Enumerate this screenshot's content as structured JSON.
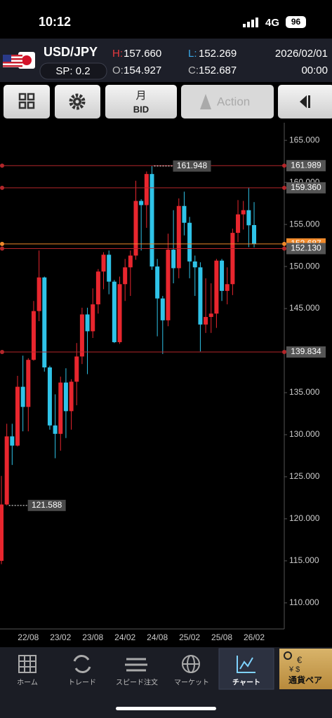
{
  "status_bar": {
    "time": "10:12",
    "network": "4G",
    "battery": "96"
  },
  "header": {
    "symbol": "USD/JPY",
    "spread": "SP: 0.2",
    "high_label": "H:",
    "high": "157.660",
    "low_label": "L:",
    "low": "152.269",
    "open_label": "O:",
    "open": "154.927",
    "close_label": "C:",
    "close": "152.687",
    "date": "2026/02/01",
    "time": "00:00"
  },
  "toolbar": {
    "period": "月",
    "side": "BID",
    "action": "Action"
  },
  "chart_data": {
    "type": "candlestick",
    "categories": [
      null,
      null,
      null,
      null,
      null,
      "22/08",
      null,
      null,
      null,
      null,
      null,
      "23/02",
      null,
      null,
      null,
      null,
      null,
      "23/08",
      null,
      null,
      null,
      null,
      null,
      "24/02",
      null,
      null,
      null,
      null,
      null,
      "24/08",
      null,
      null,
      null,
      null,
      null,
      "25/02",
      null,
      null,
      null,
      null,
      null,
      "25/08",
      null,
      null,
      null,
      null,
      null,
      "26/02"
    ],
    "open": [
      115.0,
      121.7,
      129.8,
      128.7,
      135.7,
      133.3,
      138.9,
      144.7,
      148.7,
      138.0,
      131.1,
      130.1,
      136.2,
      132.8,
      136.3,
      139.3,
      144.3,
      142.3,
      145.5,
      149.4,
      151.4,
      148.2,
      141.0,
      147.9,
      149.9,
      151.3,
      157.8,
      157.3,
      161.0,
      150.0,
      146.2,
      143.6,
      152.0,
      149.8,
      157.2,
      155.2,
      150.6,
      149.9,
      143.1,
      144.0,
      144.4,
      150.7,
      147.1,
      147.9,
      154.0,
      156.2,
      156.7,
      154.927
    ],
    "high": [
      125.1,
      131.3,
      131.3,
      137.0,
      139.4,
      139.1,
      145.9,
      151.9,
      148.8,
      138.2,
      134.8,
      136.9,
      137.9,
      136.6,
      140.9,
      145.1,
      145.1,
      147.4,
      149.7,
      151.7,
      151.9,
      148.4,
      148.8,
      150.9,
      151.9,
      160.2,
      158.0,
      161.3,
      161.948,
      150.9,
      146.5,
      153.9,
      156.7,
      158.1,
      158.9,
      155.9,
      151.3,
      150.5,
      148.6,
      148.0,
      150.9,
      150.9,
      149.9,
      154.5,
      157.9,
      157.8,
      159.4,
      157.66
    ],
    "low": [
      114.6,
      121.588,
      126.4,
      128.6,
      130.4,
      130.4,
      138.8,
      143.5,
      137.5,
      130.6,
      127.2,
      128.1,
      129.6,
      130.6,
      133.5,
      138.4,
      137.2,
      141.5,
      144.4,
      147.3,
      146.7,
      140.9,
      140.8,
      145.9,
      146.5,
      150.8,
      151.9,
      154.6,
      149.6,
      141.7,
      139.6,
      142.9,
      148.0,
      148.6,
      153.7,
      148.6,
      146.5,
      139.9,
      142.1,
      142.1,
      142.7,
      145.9,
      145.5,
      146.6,
      152.9,
      154.4,
      152.3,
      152.269
    ],
    "close": [
      121.7,
      129.8,
      128.7,
      135.7,
      133.3,
      138.9,
      144.7,
      148.7,
      138.0,
      131.1,
      130.1,
      136.2,
      132.8,
      136.3,
      139.3,
      144.3,
      142.3,
      145.5,
      149.4,
      151.4,
      148.2,
      141.0,
      147.9,
      149.9,
      151.3,
      157.8,
      157.3,
      161.0,
      150.0,
      146.2,
      143.6,
      152.0,
      149.8,
      157.2,
      155.2,
      150.6,
      149.9,
      143.1,
      144.0,
      144.4,
      150.7,
      147.1,
      147.9,
      154.0,
      156.2,
      156.7,
      154.9,
      152.687
    ],
    "up_color": "#e8262e",
    "down_color": "#2fc3e8",
    "ylim": [
      106.9,
      167.1
    ],
    "yticks": [
      {
        "value": 110,
        "label": "110.000"
      },
      {
        "value": 115,
        "label": "115.000"
      },
      {
        "value": 120,
        "label": "120.000"
      },
      {
        "value": 125,
        "label": "125.000"
      },
      {
        "value": 130,
        "label": "130.000"
      },
      {
        "value": 135,
        "label": "135.000"
      },
      {
        "value": 140,
        "label": "140.000"
      },
      {
        "value": 145,
        "label": "145.000"
      },
      {
        "value": 150,
        "label": "150.000"
      },
      {
        "value": 155,
        "label": "155.000"
      },
      {
        "value": 160,
        "label": "160.000"
      },
      {
        "value": 165,
        "label": "165.000"
      }
    ],
    "levels": [
      {
        "value": 161.989,
        "color": "#b3262a"
      },
      {
        "value": 159.36,
        "label": "159.360",
        "color": "#b3262a"
      },
      {
        "value": 152.687,
        "color": "#f0892a"
      },
      {
        "value": 152.13,
        "label": "152.130",
        "color": "#b3262a"
      },
      {
        "value": 139.834,
        "color": "#b3262a"
      }
    ],
    "annotations": [
      161.948,
      121.588
    ]
  },
  "nav": {
    "items": [
      "ホーム",
      "トレード",
      "スピード注文",
      "マーケット",
      "チャート",
      "通貨ペア"
    ]
  }
}
